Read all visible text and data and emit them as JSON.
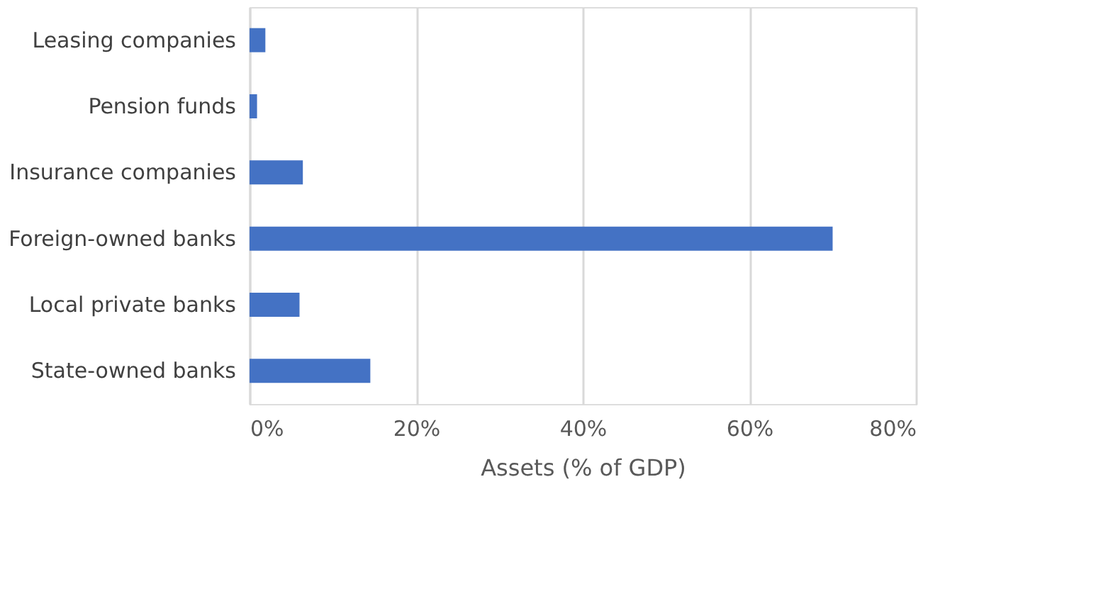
{
  "chart_data": {
    "type": "bar",
    "orientation": "horizontal",
    "xlabel": "Assets (% of GDP)",
    "categories": [
      "Leasing companies",
      "Pension funds",
      "Insurance companies",
      "Foreign-owned banks",
      "Local private banks",
      "State-owned banks"
    ],
    "values": [
      1.9,
      0.9,
      6.4,
      70.0,
      6.0,
      14.5
    ],
    "color": "#4472c4",
    "xlim": [
      0,
      80
    ],
    "xticks": [
      {
        "value": 0,
        "label": "0%"
      },
      {
        "value": 20,
        "label": "20%"
      },
      {
        "value": 40,
        "label": "40%"
      },
      {
        "value": 60,
        "label": "60%"
      },
      {
        "value": 80,
        "label": "80%"
      }
    ],
    "grid": "x"
  }
}
